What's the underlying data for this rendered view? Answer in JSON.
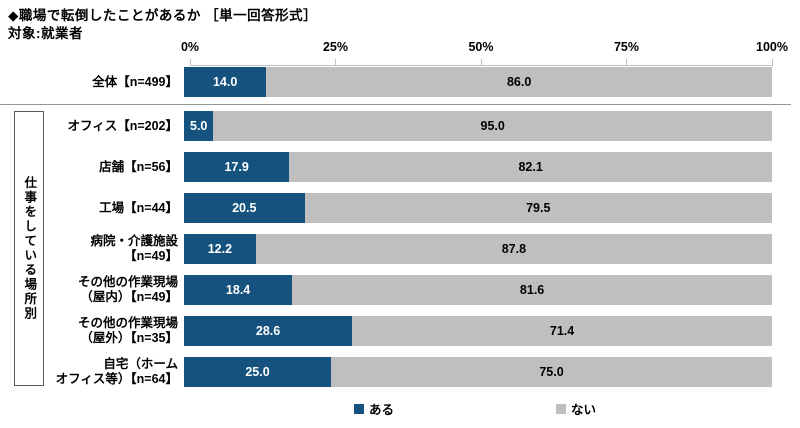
{
  "header": {
    "title": "◆職場で転倒したことがあるか ［単一回答形式］",
    "subject": "対象:就業者"
  },
  "chart_data": {
    "type": "bar",
    "orientation": "horizontal-stacked",
    "title": "職場で転倒したことがあるか",
    "unit": "%",
    "x_axis": {
      "range": [
        0,
        100
      ],
      "ticks": [
        "0%",
        "25%",
        "50%",
        "75%",
        "100%"
      ]
    },
    "group_label": "仕事をしている場所別",
    "categories": [
      "全体【n=499】",
      "オフィス【n=202】",
      "店舗【n=56】",
      "工場【n=44】",
      "病院・介護施設\n【n=49】",
      "その他の作業現場\n（屋内）【n=49】",
      "その他の作業現場\n（屋外）【n=35】",
      "自宅（ホーム\nオフィス等）【n=64】"
    ],
    "series": [
      {
        "name": "ある",
        "color": "#15527D",
        "values": [
          14.0,
          5.0,
          17.9,
          20.5,
          12.2,
          18.4,
          28.6,
          25.0
        ],
        "labels": [
          "14.0",
          "5.0",
          "17.9",
          "20.5",
          "12.2",
          "18.4",
          "28.6",
          "25.0"
        ]
      },
      {
        "name": "ない",
        "color": "#BFBFBF",
        "values": [
          86.0,
          95.0,
          82.1,
          79.5,
          87.8,
          81.6,
          71.4,
          75.0
        ],
        "labels": [
          "86.0",
          "95.0",
          "82.1",
          "79.5",
          "87.8",
          "81.6",
          "71.4",
          "75.0"
        ]
      }
    ],
    "legend_position": "bottom"
  }
}
